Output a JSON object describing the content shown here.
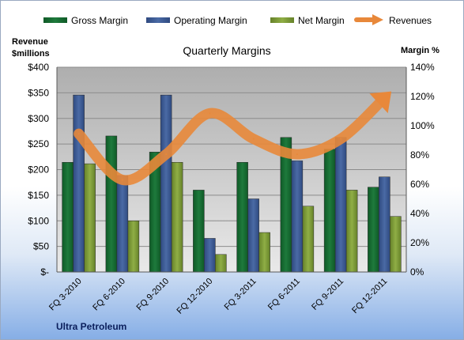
{
  "colors": {
    "gross_margin": "#1e7a3c",
    "operating_margin": "#4a6aa5",
    "net_margin": "#8fae45",
    "revenues": "#e8883a",
    "plot_area": "#c8c8c8"
  },
  "chart_data": {
    "type": "bar",
    "title": "Quarterly Margins",
    "company": "Ultra Petroleum",
    "left_axis_title": [
      "Revenue",
      "$millions"
    ],
    "right_axis_title": "Margin %",
    "categories": [
      "FQ 3-2010",
      "FQ 6-2010",
      "FQ 9-2010",
      "FQ 12-2010",
      "FQ 3-2011",
      "FQ 6-2011",
      "FQ 9-2011",
      "FQ 12-2011"
    ],
    "y_left_ticks": [
      "$-",
      "$50",
      "$100",
      "$150",
      "$200",
      "$250",
      "$300",
      "$350",
      "$400"
    ],
    "y_right_ticks": [
      "0%",
      "20%",
      "40%",
      "60%",
      "80%",
      "100%",
      "120%",
      "140%"
    ],
    "ylim_left": [
      0,
      400
    ],
    "ylim_right": [
      0,
      140
    ],
    "grid": true,
    "legend_position": "top",
    "series": [
      {
        "name": "Gross Margin",
        "axis": "right",
        "type": "bar",
        "values": [
          75,
          93,
          82,
          56,
          75,
          92,
          84,
          58
        ]
      },
      {
        "name": "Operating Margin",
        "axis": "right",
        "type": "bar",
        "values": [
          121,
          66,
          121,
          23,
          50,
          76,
          92,
          65
        ]
      },
      {
        "name": "Net Margin",
        "axis": "right",
        "type": "bar",
        "values": [
          74,
          35,
          75,
          12,
          27,
          45,
          56,
          38
        ]
      },
      {
        "name": "Revenues",
        "axis": "left",
        "type": "line-arrow",
        "values": [
          270,
          180,
          230,
          310,
          260,
          230,
          260,
          340
        ]
      }
    ]
  }
}
